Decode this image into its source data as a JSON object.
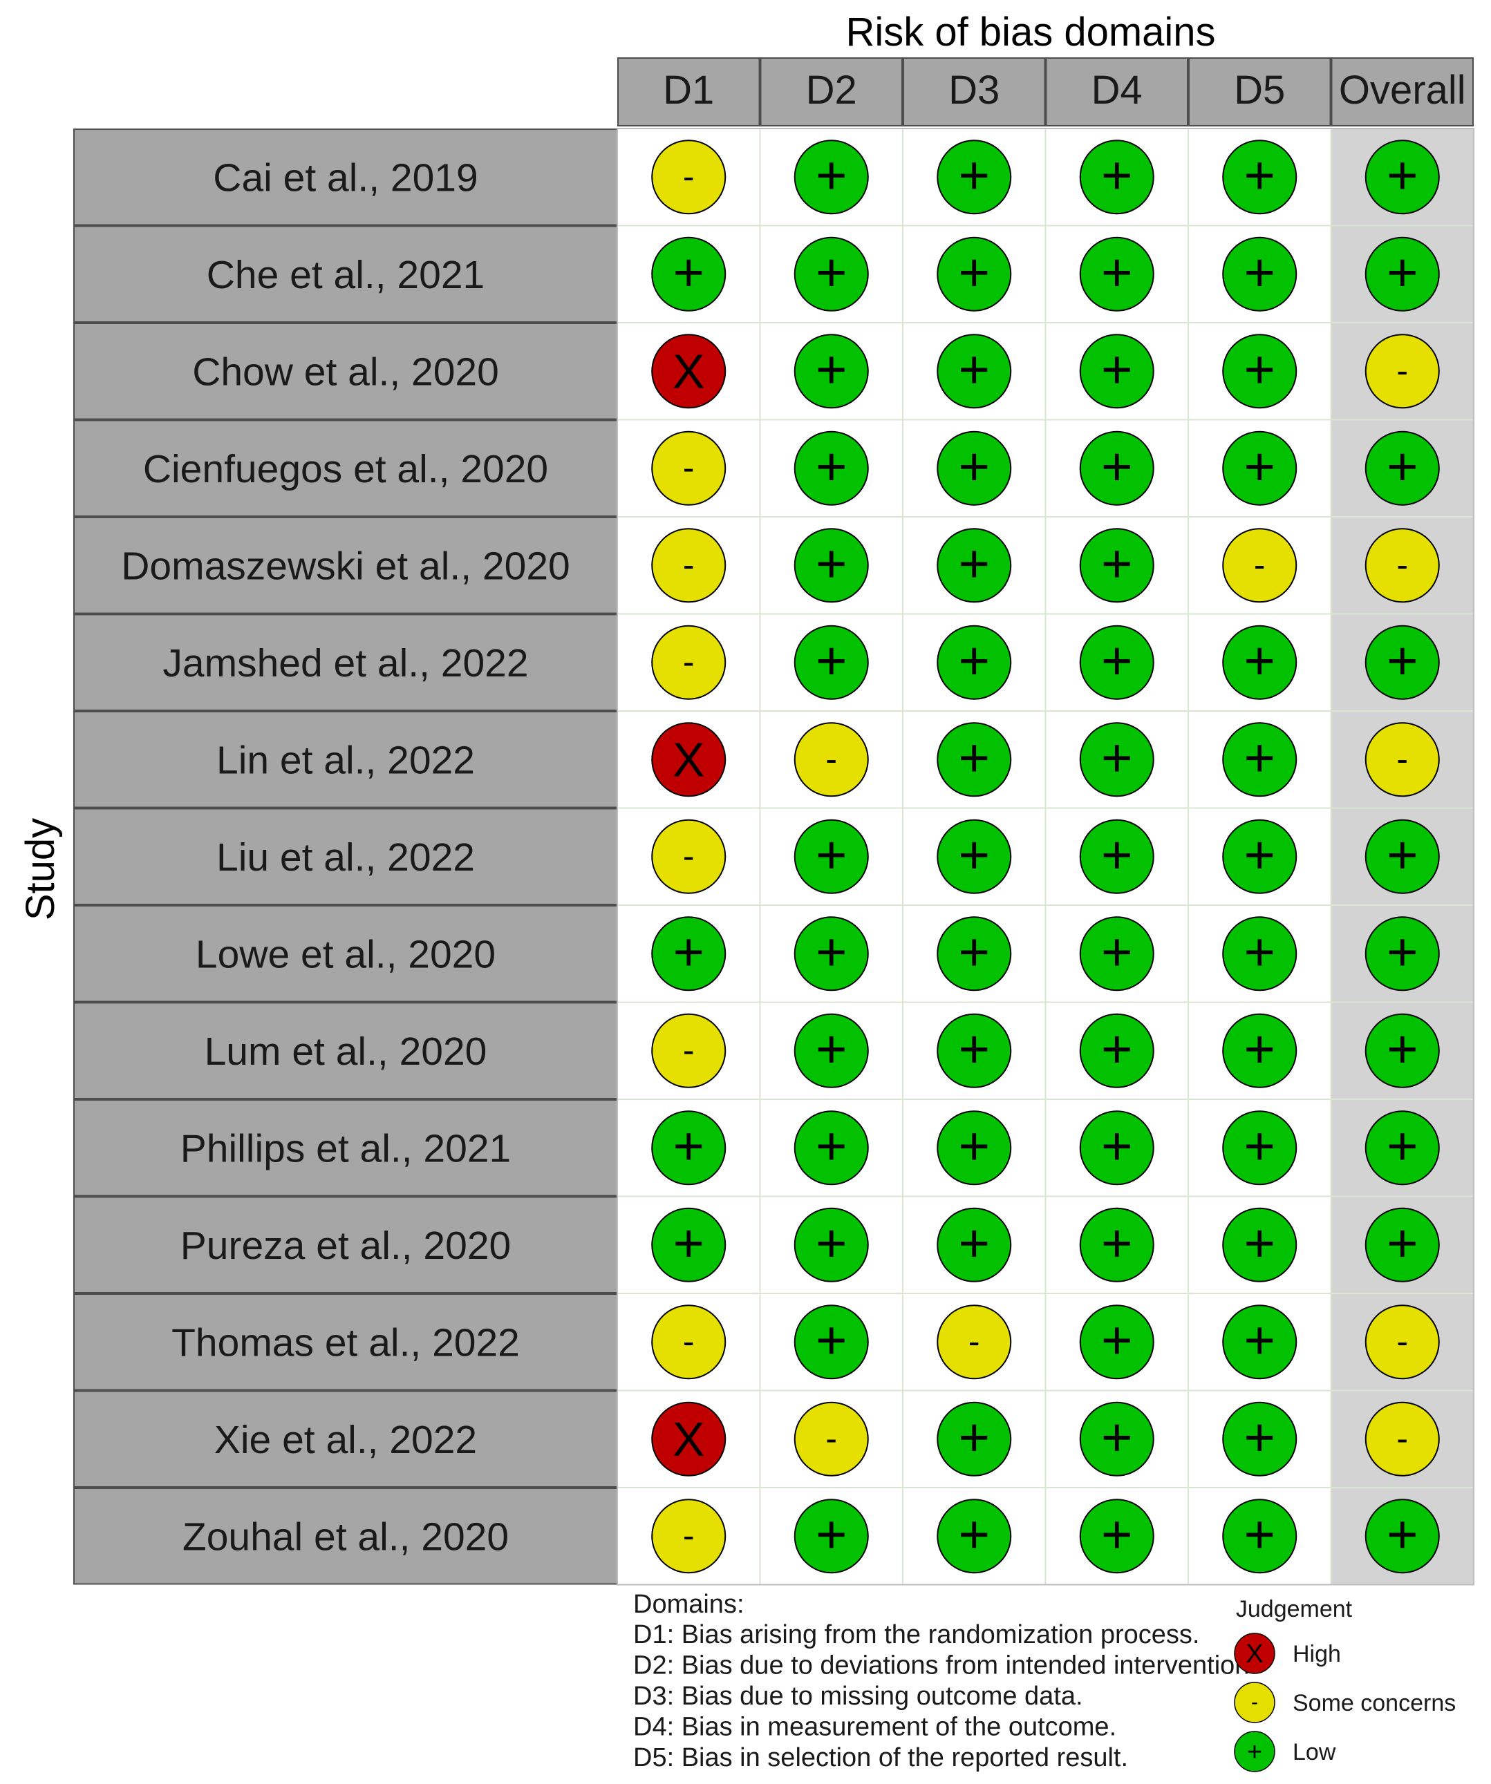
{
  "chart_data": {
    "type": "table",
    "title": "Risk of bias domains",
    "ylabel": "Study",
    "columns": [
      "D1",
      "D2",
      "D3",
      "D4",
      "D5",
      "Overall"
    ],
    "studies": [
      "Cai et al., 2019",
      "Che et al., 2021",
      "Chow et al., 2020",
      "Cienfuegos et al., 2020",
      "Domaszewski et al., 2020",
      "Jamshed et al., 2022",
      "Lin et al., 2022",
      "Liu et al., 2022",
      "Lowe et al., 2020",
      "Lum et al., 2020",
      "Phillips et al., 2021",
      "Pureza et al., 2020",
      "Thomas et al., 2022",
      "Xie et al., 2022",
      "Zouhal et al., 2020"
    ],
    "judgements": [
      [
        "some",
        "low",
        "low",
        "low",
        "low",
        "low"
      ],
      [
        "low",
        "low",
        "low",
        "low",
        "low",
        "low"
      ],
      [
        "high",
        "low",
        "low",
        "low",
        "low",
        "some"
      ],
      [
        "some",
        "low",
        "low",
        "low",
        "low",
        "low"
      ],
      [
        "some",
        "low",
        "low",
        "low",
        "some",
        "some"
      ],
      [
        "some",
        "low",
        "low",
        "low",
        "low",
        "low"
      ],
      [
        "high",
        "some",
        "low",
        "low",
        "low",
        "some"
      ],
      [
        "some",
        "low",
        "low",
        "low",
        "low",
        "low"
      ],
      [
        "low",
        "low",
        "low",
        "low",
        "low",
        "low"
      ],
      [
        "some",
        "low",
        "low",
        "low",
        "low",
        "low"
      ],
      [
        "low",
        "low",
        "low",
        "low",
        "low",
        "low"
      ],
      [
        "low",
        "low",
        "low",
        "low",
        "low",
        "low"
      ],
      [
        "some",
        "low",
        "some",
        "low",
        "low",
        "some"
      ],
      [
        "high",
        "some",
        "low",
        "low",
        "low",
        "some"
      ],
      [
        "some",
        "low",
        "low",
        "low",
        "low",
        "low"
      ]
    ],
    "symbols": {
      "high": "X",
      "some": "-",
      "low": "+"
    },
    "colors": {
      "high": "#c00000",
      "some": "#e5e000",
      "low": "#02c100",
      "header_fill": "#a6a6a6",
      "study_fill": "#a6a6a6",
      "overall_fill": "#d3d3d3"
    },
    "domains_title": "Domains:",
    "domains": [
      "D1: Bias arising from the randomization process.",
      "D2: Bias due to deviations from intended intervention.",
      "D3: Bias due to missing outcome data.",
      "D4: Bias in measurement of the outcome.",
      "D5: Bias in selection of the reported result."
    ],
    "legend_title": "Judgement",
    "legend": [
      {
        "key": "high",
        "label": "High"
      },
      {
        "key": "some",
        "label": "Some concerns"
      },
      {
        "key": "low",
        "label": "Low"
      }
    ]
  }
}
